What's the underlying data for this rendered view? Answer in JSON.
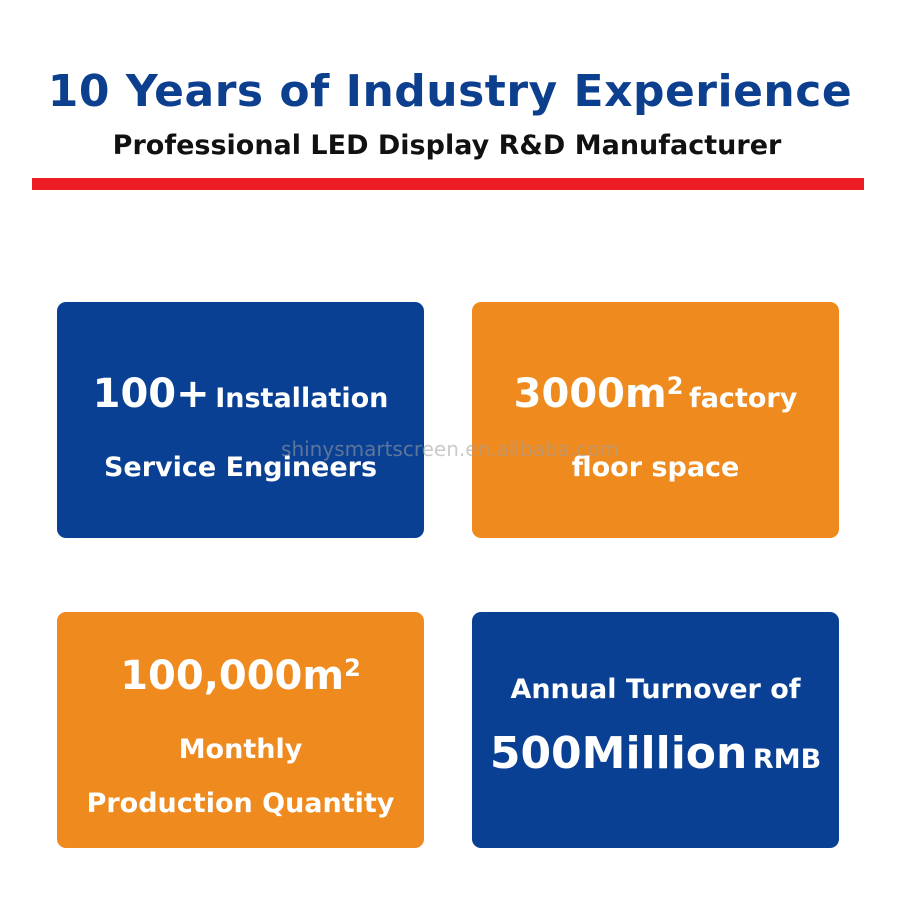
{
  "header": {
    "title": "10 Years of Industry Experience",
    "subtitle": "Professional LED Display R&D Manufacturer"
  },
  "colors": {
    "blue": "#0a4093",
    "orange": "#ef8a1e",
    "red_rule": "#ee1c24",
    "title_blue": "#0d3f8f"
  },
  "cards": [
    {
      "color": "blue",
      "value": "100+",
      "label_inline": "Installation",
      "label_line2": "Service Engineers"
    },
    {
      "color": "orange",
      "value": "3000m",
      "value_sup": "2",
      "label_inline": "factory",
      "label_line2": "floor space"
    },
    {
      "color": "orange",
      "value": "100,000m",
      "value_sup": "2",
      "label_line2": "Monthly",
      "label_line3": "Production Quantity"
    },
    {
      "color": "blue",
      "label_line1": "Annual Turnover of",
      "value": "500Million",
      "unit": "RMB"
    }
  ],
  "watermark": "shinysmartscreen.en.alibaba.com"
}
